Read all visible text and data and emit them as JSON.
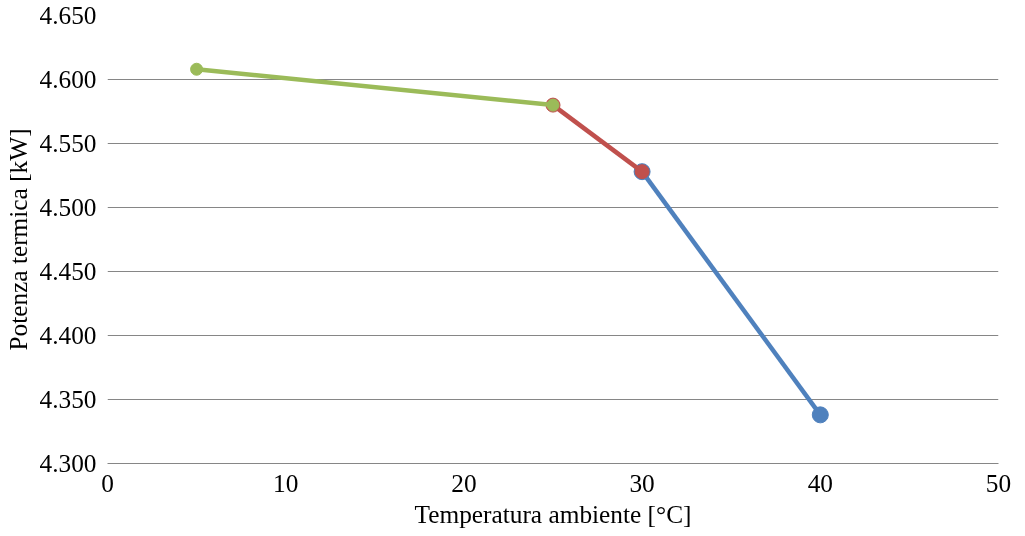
{
  "chart_data": {
    "type": "line",
    "xlabel": "Temperatura ambiente [°C]",
    "ylabel": "Potenza termica [kW]",
    "series": [
      {
        "color": "#9bbb59",
        "x": [
          5,
          25
        ],
        "values": [
          4.608,
          4.58
        ]
      },
      {
        "color": "#c0504d",
        "x": [
          25,
          30
        ],
        "values": [
          4.58,
          4.528
        ]
      },
      {
        "color": "#4f81bd",
        "x": [
          30,
          40
        ],
        "values": [
          4.528,
          4.338
        ]
      }
    ],
    "xlim": [
      0,
      50
    ],
    "xticks": [
      0,
      10,
      20,
      30,
      40,
      50
    ],
    "ylim": [
      4.3,
      4.65
    ],
    "yticks": [
      {
        "value": 4.3,
        "label": "4.300"
      },
      {
        "value": 4.35,
        "label": "4.350"
      },
      {
        "value": 4.4,
        "label": "4.400"
      },
      {
        "value": 4.45,
        "label": "4.450"
      },
      {
        "value": 4.5,
        "label": "4.500"
      },
      {
        "value": 4.55,
        "label": "4.550"
      },
      {
        "value": 4.6,
        "label": "4.600"
      },
      {
        "value": 4.65,
        "label": "4.650"
      }
    ],
    "grid": "y",
    "marker": "circle",
    "line_style": "solid"
  }
}
